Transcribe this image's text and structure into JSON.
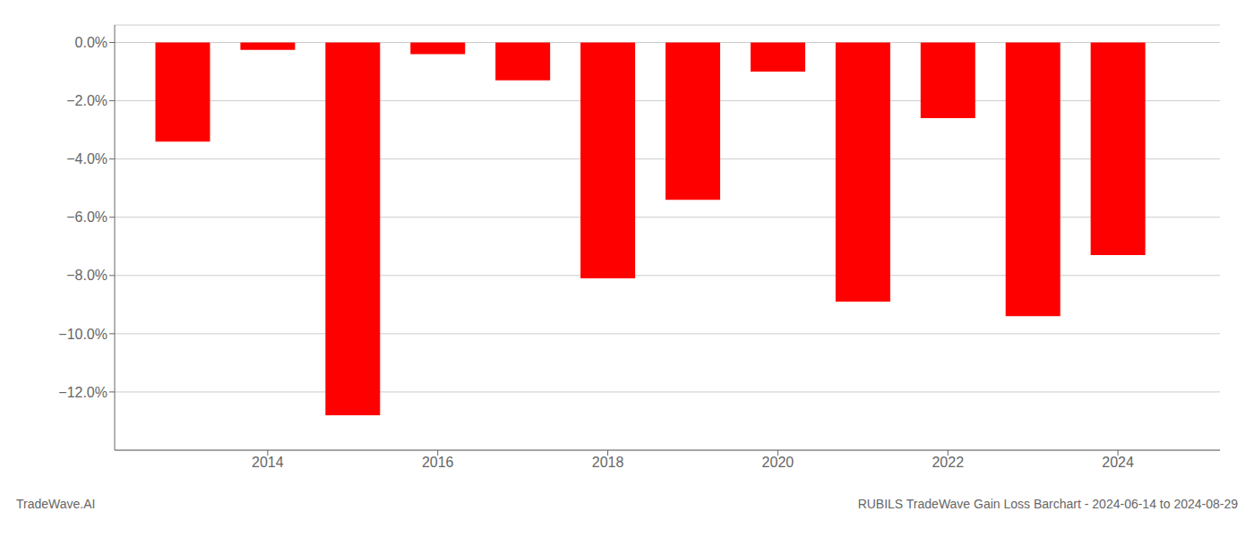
{
  "chart_data": {
    "type": "bar",
    "x": [
      2013,
      2014,
      2015,
      2016,
      2017,
      2018,
      2019,
      2020,
      2021,
      2022,
      2023,
      2024
    ],
    "values": [
      -3.4,
      -0.25,
      -12.8,
      -0.4,
      -1.3,
      -8.1,
      -5.4,
      -1.0,
      -8.9,
      -2.6,
      -9.4,
      -7.3
    ],
    "color": "#ff0000",
    "xlim": [
      2012.2,
      2025.2
    ],
    "xticks": [
      2014,
      2016,
      2018,
      2020,
      2022,
      2024
    ],
    "ylim": [
      -14.0,
      0.6
    ],
    "yticks": [
      {
        "value": 0.0,
        "label": "0.0%"
      },
      {
        "value": -2.0,
        "label": "−2.0%"
      },
      {
        "value": -4.0,
        "label": "−4.0%"
      },
      {
        "value": -6.0,
        "label": "−6.0%"
      },
      {
        "value": -8.0,
        "label": "−8.0%"
      },
      {
        "value": -10.0,
        "label": "−10.0%"
      },
      {
        "value": -12.0,
        "label": "−12.0%"
      }
    ],
    "grid": true,
    "annotations": [
      "TradeWave.AI",
      "RUBILS TradeWave Gain Loss Barchart - 2024-06-14 to 2024-08-29"
    ]
  }
}
